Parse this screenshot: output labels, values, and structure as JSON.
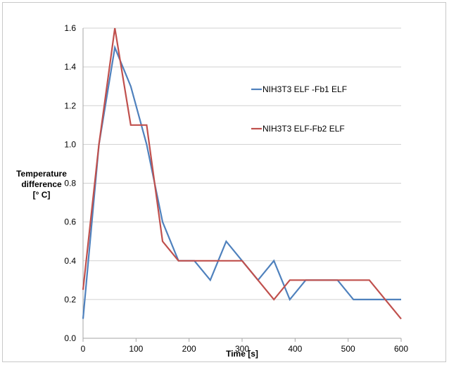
{
  "chart_data": {
    "type": "line",
    "xlabel": "Time [s]",
    "ylabel_lines": [
      "Temperature",
      "difference",
      "[° C]"
    ],
    "xlim": [
      0,
      600
    ],
    "ylim": [
      0,
      1.6
    ],
    "x_ticks": [
      "0",
      "100",
      "200",
      "300",
      "400",
      "500",
      "600"
    ],
    "y_ticks": [
      "0.0",
      "0.2",
      "0.4",
      "0.6",
      "0.8",
      "1.0",
      "1.2",
      "1.4",
      "1.6"
    ],
    "grid": "horizontal",
    "legend_position": "right",
    "x": [
      0,
      30,
      60,
      90,
      120,
      150,
      180,
      210,
      240,
      270,
      300,
      330,
      360,
      390,
      420,
      450,
      480,
      510,
      540,
      570,
      600
    ],
    "series": [
      {
        "name": "NIH3T3 ELF -Fb1 ELF",
        "color": "#4f81bd",
        "values": [
          0.1,
          1.0,
          1.5,
          1.3,
          1.0,
          0.6,
          0.4,
          0.4,
          0.3,
          0.5,
          0.4,
          0.3,
          0.4,
          0.2,
          0.3,
          0.3,
          0.3,
          0.2,
          0.2,
          0.2,
          0.2
        ]
      },
      {
        "name": "NIH3T3 ELF-Fb2 ELF",
        "color": "#c0504d",
        "values": [
          0.25,
          1.0,
          1.6,
          1.1,
          1.1,
          0.5,
          0.4,
          0.4,
          0.4,
          0.4,
          0.4,
          0.3,
          0.2,
          0.3,
          0.3,
          0.3,
          0.3,
          0.3,
          0.3,
          0.2,
          0.1
        ]
      }
    ]
  }
}
